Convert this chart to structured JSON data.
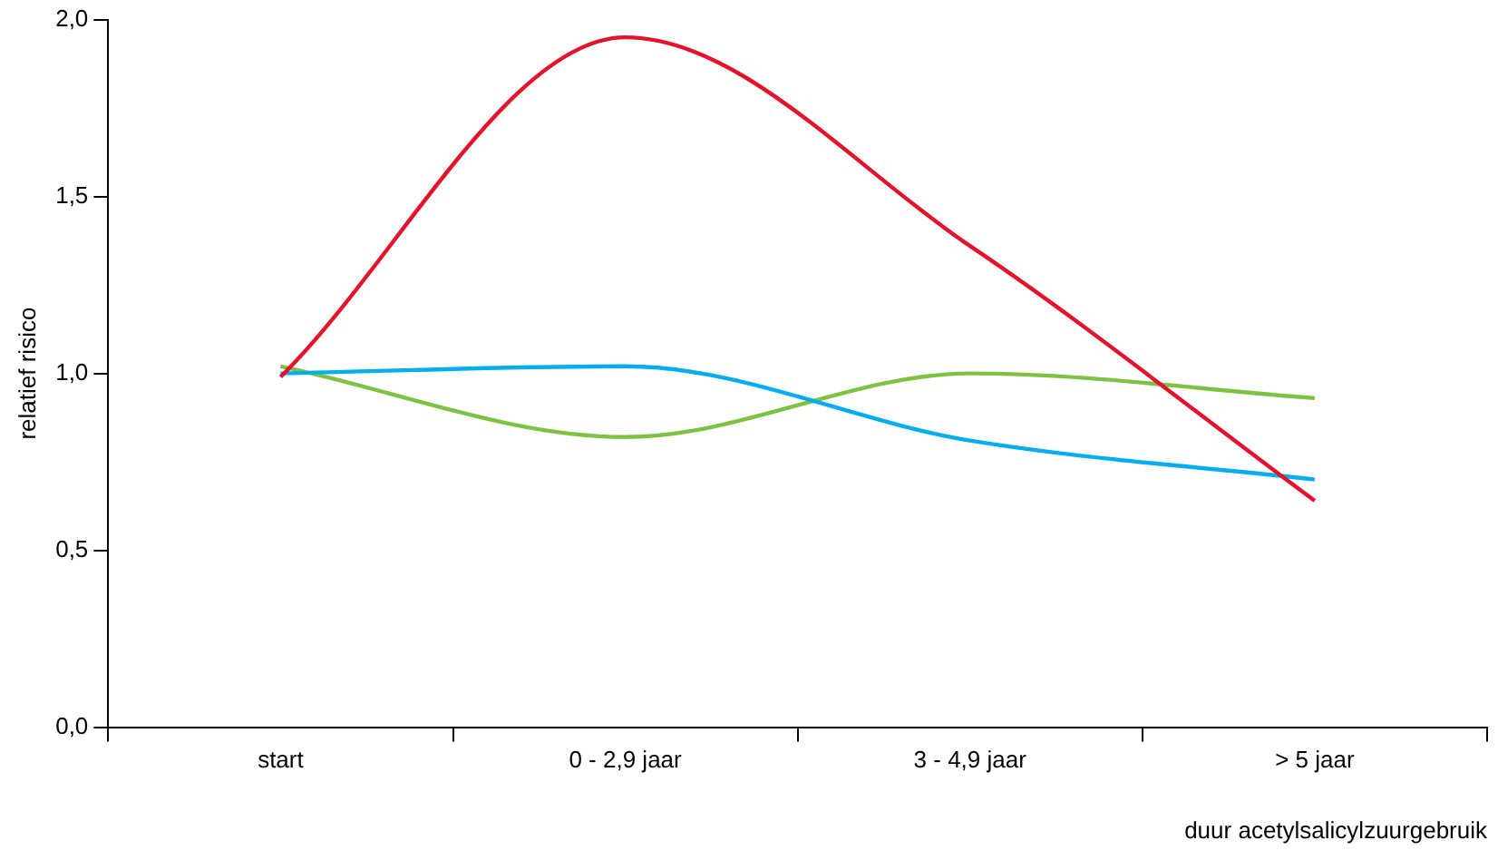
{
  "chart_data": {
    "type": "line",
    "xlabel": "duur acetylsalicylzuurgebruik",
    "ylabel": "relatief risico",
    "categories": [
      "start",
      "0 - 2,9 jaar",
      "3 - 4,9 jaar",
      "> 5 jaar"
    ],
    "series": [
      {
        "color": "#e3132d",
        "values": [
          0.99,
          1.95,
          1.36,
          0.64
        ]
      },
      {
        "color": "#00aeef",
        "values": [
          1.0,
          1.02,
          0.81,
          0.7
        ]
      },
      {
        "color": "#7dc242",
        "values": [
          1.02,
          0.82,
          1.0,
          0.93
        ]
      }
    ],
    "ylim": [
      0,
      2
    ],
    "yticks": [
      {
        "value": 0,
        "label": "0,0"
      },
      {
        "value": 0.5,
        "label": "0,5"
      },
      {
        "value": 1,
        "label": "1,0"
      },
      {
        "value": 1.5,
        "label": "1,5"
      },
      {
        "value": 2,
        "label": "2,0"
      }
    ],
    "grid": false,
    "legend": false,
    "marker": "none",
    "line_style": "solid"
  }
}
